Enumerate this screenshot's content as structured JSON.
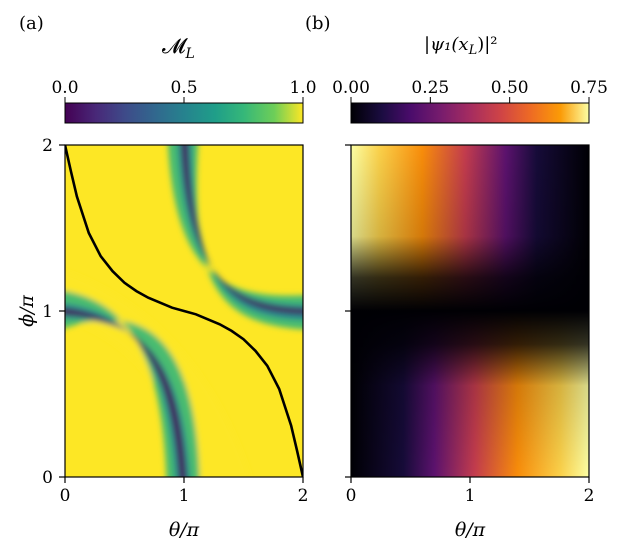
{
  "chart_data": [
    {
      "panel_label": "(a)",
      "type": "heatmap",
      "title": "",
      "colorbar": {
        "label": "𝓜",
        "label_sub": "L",
        "colormap": "viridis",
        "range": [
          0.0,
          1.0
        ],
        "ticks": [
          "0.0",
          "0.5",
          "1.0"
        ],
        "tick_values": [
          0.0,
          0.5,
          1.0
        ],
        "position": "top"
      },
      "xlabel": "θ/π",
      "ylabel": "ϕ/π",
      "xlim": [
        0,
        2
      ],
      "ylim": [
        0,
        2
      ],
      "xticks": [
        "0",
        "1",
        "2"
      ],
      "yticks": [
        "0",
        "1",
        "2"
      ],
      "heatmap_description_values": {
        "minimum_valleys": [
          {
            "from": [
              0.0,
              1.0
            ],
            "to": [
              1.0,
              0.0
            ]
          },
          {
            "from": [
              1.0,
              2.0
            ],
            "to": [
              2.0,
              1.0
            ]
          }
        ],
        "background_value": 1.0
      },
      "overlay_curve": {
        "type": "line",
        "color": "#000000",
        "x": [
          0.0,
          0.05,
          0.1,
          0.2,
          0.3,
          0.4,
          0.5,
          0.6,
          0.7,
          0.8,
          0.9,
          1.0,
          1.1,
          1.2,
          1.3,
          1.4,
          1.5,
          1.6,
          1.7,
          1.8,
          1.9,
          1.95,
          2.0
        ],
        "y": [
          2.0,
          1.84,
          1.69,
          1.47,
          1.33,
          1.24,
          1.17,
          1.12,
          1.08,
          1.05,
          1.02,
          1.0,
          0.98,
          0.95,
          0.92,
          0.88,
          0.83,
          0.76,
          0.67,
          0.53,
          0.31,
          0.16,
          0.0
        ]
      }
    },
    {
      "panel_label": "(b)",
      "type": "heatmap",
      "title": "",
      "colorbar": {
        "label": "|ψ₁(x",
        "label_sub": "L",
        "label_end": ")|²",
        "colormap": "inferno",
        "range": [
          0.0,
          0.75
        ],
        "ticks": [
          "0.00",
          "0.25",
          "0.50",
          "0.75"
        ],
        "tick_values": [
          0.0,
          0.25,
          0.5,
          0.75
        ],
        "position": "top"
      },
      "xlabel": "θ/π",
      "xlim": [
        0,
        2
      ],
      "ylim": [
        0,
        2
      ],
      "xticks": [
        "0",
        "1",
        "2"
      ],
      "heatmap_description_values": {
        "upper_left_maximum": [
          0.0,
          2.0,
          0.75
        ],
        "lower_right_maximum": [
          2.0,
          0.0,
          0.75
        ],
        "dark_region_value": 0.0
      }
    }
  ],
  "colors": {
    "axis": "#000000",
    "curve": "#000000"
  }
}
